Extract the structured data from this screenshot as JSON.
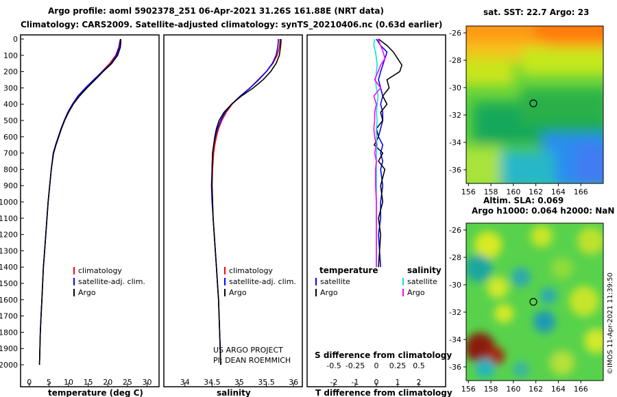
{
  "header": {
    "line1": "Argo profile: aoml 5902378_251 06-Apr-2021 31.26S 161.88E (NRT data)",
    "line2": "Climatology: CARS2009. Satellite-adjusted climatology: synTS_20210406.nc (0.63d earlier)"
  },
  "colors": {
    "climatology": "#ff0000",
    "satellite": "#0000ff",
    "argo": "#000000",
    "sal_satellite": "#00e5e5",
    "sal_argo": "#ff00ff"
  },
  "chart_data": [
    {
      "type": "line",
      "panel": "temperature",
      "xlabel": "temperature (deg C)",
      "ylabel": "",
      "xlim": [
        -1,
        32
      ],
      "ylim": [
        2100,
        0
      ],
      "xticks": [
        "0",
        "5",
        "10",
        "15",
        "20",
        "25",
        "30"
      ],
      "yticks": [
        "0",
        "100",
        "200",
        "300",
        "400",
        "500",
        "600",
        "700",
        "800",
        "900",
        "1000",
        "1100",
        "1200",
        "1300",
        "1400",
        "1500",
        "1600",
        "1700",
        "1800",
        "1900",
        "2000"
      ],
      "legend": [
        "climatology",
        "satellite-adj. clim.",
        "Argo"
      ],
      "series": [
        {
          "name": "climatology",
          "color": "red",
          "x": [
            23.2,
            23.0,
            22.8,
            22.0,
            20.5,
            18.5,
            16.5,
            14.5,
            12.5,
            11.0,
            9.8,
            8.9,
            8.1,
            7.4,
            6.7,
            6.1,
            5.6,
            5.2,
            4.8,
            4.5,
            4.2,
            3.9,
            3.6,
            3.4,
            3.2,
            3.0,
            2.8,
            2.6
          ],
          "y": [
            0,
            20,
            50,
            100,
            150,
            200,
            250,
            300,
            350,
            400,
            450,
            500,
            550,
            600,
            650,
            700,
            800,
            900,
            1000,
            1100,
            1200,
            1300,
            1400,
            1500,
            1600,
            1700,
            1800,
            2000
          ]
        },
        {
          "name": "satellite-adj. clim.",
          "color": "blue",
          "x": [
            23.3,
            23.1,
            22.9,
            22.2,
            20.8,
            18.6,
            16.4,
            14.3,
            12.4,
            11.0,
            9.8,
            8.9,
            8.1,
            7.4,
            6.7,
            6.1,
            5.6,
            5.2,
            4.8,
            4.5,
            4.2,
            3.9,
            3.6,
            3.4,
            3.2,
            3.0,
            2.8,
            2.6
          ],
          "y": [
            0,
            20,
            50,
            100,
            150,
            200,
            250,
            300,
            350,
            400,
            450,
            500,
            550,
            600,
            650,
            700,
            800,
            900,
            1000,
            1100,
            1200,
            1300,
            1400,
            1500,
            1600,
            1700,
            1800,
            2000
          ]
        },
        {
          "name": "Argo",
          "color": "black",
          "x": [
            23.3,
            23.3,
            23.2,
            22.5,
            21.0,
            18.8,
            16.8,
            14.7,
            12.8,
            11.2,
            10.0,
            9.0,
            8.2,
            7.5,
            6.8,
            6.2,
            5.6,
            5.2,
            4.8,
            4.5,
            4.2,
            3.9,
            3.6,
            3.4,
            3.2,
            3.0,
            2.8,
            2.6
          ],
          "y": [
            0,
            20,
            50,
            100,
            150,
            200,
            250,
            300,
            350,
            400,
            450,
            500,
            550,
            600,
            650,
            700,
            800,
            900,
            1000,
            1100,
            1200,
            1300,
            1400,
            1500,
            1600,
            1700,
            1800,
            2000
          ]
        }
      ]
    },
    {
      "type": "line",
      "panel": "salinity",
      "xlabel": "salinity",
      "xlim": [
        33.7,
        36.1
      ],
      "ylim": [
        2100,
        0
      ],
      "xticks": [
        "34",
        "34.5",
        "35",
        "35.5",
        "36"
      ],
      "legend": [
        "climatology",
        "satellite-adj. clim.",
        "Argo"
      ],
      "annotations": [
        "US ARGO PROJECT",
        "PI: DEAN ROEMMICH"
      ],
      "series": [
        {
          "name": "climatology",
          "color": "red",
          "x": [
            35.75,
            35.75,
            35.74,
            35.7,
            35.62,
            35.5,
            35.35,
            35.2,
            35.02,
            34.87,
            34.76,
            34.68,
            34.62,
            34.58,
            34.55,
            34.53,
            34.51,
            34.5,
            34.51,
            34.52,
            34.54,
            34.56,
            34.58,
            34.6,
            34.62,
            34.63,
            34.64,
            34.66
          ],
          "y": [
            0,
            20,
            50,
            100,
            150,
            200,
            250,
            300,
            350,
            400,
            450,
            500,
            550,
            600,
            650,
            700,
            800,
            900,
            1000,
            1100,
            1200,
            1300,
            1400,
            1500,
            1600,
            1700,
            1800,
            2000
          ]
        },
        {
          "name": "satellite-adj. clim.",
          "color": "blue",
          "x": [
            35.72,
            35.72,
            35.71,
            35.68,
            35.61,
            35.5,
            35.36,
            35.2,
            35.02,
            34.86,
            34.74,
            34.66,
            34.6,
            34.56,
            34.53,
            34.51,
            34.5,
            34.49,
            34.5,
            34.52,
            34.54,
            34.56,
            34.58,
            34.6,
            34.62,
            34.63,
            34.64,
            34.66
          ],
          "y": [
            0,
            20,
            50,
            100,
            150,
            200,
            250,
            300,
            350,
            400,
            450,
            500,
            550,
            600,
            650,
            700,
            800,
            900,
            1000,
            1100,
            1200,
            1300,
            1400,
            1500,
            1600,
            1700,
            1800,
            2000
          ]
        },
        {
          "name": "Argo",
          "color": "black",
          "x": [
            35.77,
            35.77,
            35.76,
            35.74,
            35.68,
            35.58,
            35.44,
            35.26,
            35.04,
            34.86,
            34.72,
            34.63,
            34.58,
            34.55,
            34.53,
            34.51,
            34.5,
            34.5,
            34.51,
            34.52,
            34.54,
            34.56,
            34.58,
            34.6,
            34.62,
            34.63,
            34.64,
            34.66
          ],
          "y": [
            0,
            20,
            50,
            100,
            150,
            200,
            250,
            300,
            350,
            400,
            450,
            500,
            550,
            600,
            650,
            700,
            800,
            900,
            1000,
            1100,
            1200,
            1300,
            1400,
            1500,
            1600,
            1700,
            1800,
            2000
          ]
        }
      ]
    },
    {
      "type": "line",
      "panel": "differences",
      "xlabel": "T difference from climatology",
      "title_lower": "S difference from climatology",
      "xlim": [
        -3.0,
        3.0
      ],
      "ylim": [
        2100,
        0
      ],
      "xticks": [
        "-2",
        "-1",
        "0",
        "1",
        "2"
      ],
      "sticks": [
        "-0.5",
        "-0.25",
        "0",
        "0.25",
        "0.5"
      ],
      "legend_headers": [
        "temperature",
        "salinity"
      ],
      "legend": [
        "satellite",
        "Argo",
        "satellite",
        "Argo"
      ],
      "series": [
        {
          "name": "T satellite",
          "color": "blue",
          "x": [
            0.0,
            0.2,
            0.5,
            0.4,
            0.3,
            0.2,
            0.1,
            0.2,
            0.3,
            0.2,
            0.3,
            0.3,
            0.2,
            0.1,
            0.3,
            0.2,
            0.3,
            0.2,
            0.3,
            0.2,
            0.2,
            0.1,
            0.2
          ],
          "y": [
            0,
            40,
            80,
            120,
            160,
            200,
            250,
            300,
            350,
            400,
            450,
            500,
            550,
            600,
            650,
            700,
            750,
            800,
            900,
            1000,
            1100,
            1200,
            1400
          ]
        },
        {
          "name": "T Argo",
          "color": "black",
          "x": [
            0.1,
            0.5,
            0.8,
            1.0,
            1.2,
            1.1,
            0.5,
            0.6,
            0.3,
            0.5,
            0.2,
            0.3,
            0.0,
            0.1,
            -0.1,
            0.3,
            0.1,
            0.4,
            0.2,
            0.3,
            0.1,
            0.2,
            0.1
          ],
          "y": [
            0,
            40,
            80,
            120,
            160,
            200,
            250,
            300,
            350,
            400,
            450,
            500,
            550,
            600,
            650,
            700,
            750,
            800,
            900,
            1000,
            1100,
            1200,
            1400
          ]
        },
        {
          "name": "S satellite",
          "color": "cyan",
          "x": [
            -0.02,
            -0.03,
            -0.01,
            0.0,
            0.01,
            0.0,
            -0.01,
            0.0,
            0.02,
            0.01,
            0.0,
            0.01,
            0.0,
            0.0,
            0.01,
            0.0,
            0.0,
            0.0,
            0.0,
            0.0,
            0.0,
            0.0,
            0.0
          ],
          "y": [
            0,
            40,
            80,
            120,
            160,
            200,
            250,
            300,
            350,
            400,
            450,
            500,
            550,
            600,
            650,
            700,
            750,
            800,
            900,
            1000,
            1100,
            1200,
            1400
          ]
        },
        {
          "name": "S Argo",
          "color": "magenta",
          "x": [
            0.02,
            0.05,
            0.08,
            0.1,
            0.05,
            0.02,
            -0.02,
            0.05,
            -0.03,
            0.0,
            -0.02,
            -0.02,
            -0.03,
            -0.02,
            0.0,
            -0.02,
            0.0,
            -0.01,
            -0.01,
            0.0,
            0.0,
            0.0,
            0.0
          ],
          "y": [
            0,
            40,
            80,
            120,
            160,
            200,
            250,
            300,
            350,
            400,
            450,
            500,
            550,
            600,
            650,
            700,
            750,
            800,
            900,
            1000,
            1100,
            1200,
            1400
          ]
        }
      ]
    },
    {
      "type": "heatmap",
      "panel": "sst_map",
      "title": "sat. SST: 22.7 Argo: 23",
      "xticks": [
        "156",
        "158",
        "160",
        "162",
        "164",
        "166"
      ],
      "yticks": [
        "-26",
        "-28",
        "-30",
        "-32",
        "-34",
        "-36"
      ],
      "marker": {
        "lon": 161.88,
        "lat": -31.26
      }
    },
    {
      "type": "heatmap",
      "panel": "sla_map",
      "title": "Altim. SLA: 0.069",
      "subtitle": "Argo h1000: 0.064 h2000: NaN",
      "xticks": [
        "156",
        "158",
        "160",
        "162",
        "164",
        "166"
      ],
      "yticks": [
        "-26",
        "-28",
        "-30",
        "-32",
        "-34",
        "-36"
      ],
      "marker": {
        "lon": 161.88,
        "lat": -31.26
      },
      "credit": "©IMOS 11-Apr-2021 11:39:50"
    }
  ]
}
